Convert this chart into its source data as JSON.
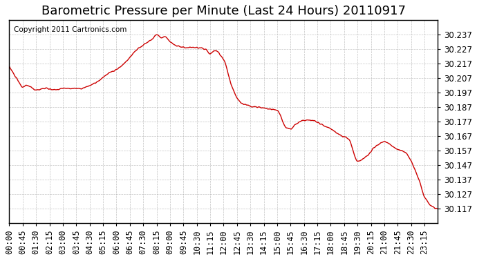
{
  "title": "Barometric Pressure per Minute (Last 24 Hours) 20110917",
  "copyright": "Copyright 2011 Cartronics.com",
  "line_color": "#cc0000",
  "background_color": "#ffffff",
  "grid_color": "#aaaaaa",
  "ylim": [
    30.107,
    30.247
  ],
  "yticks": [
    30.117,
    30.127,
    30.137,
    30.147,
    30.157,
    30.167,
    30.177,
    30.187,
    30.197,
    30.207,
    30.217,
    30.227,
    30.237
  ],
  "xtick_labels": [
    "00:00",
    "00:45",
    "01:30",
    "02:15",
    "03:00",
    "03:45",
    "04:30",
    "05:15",
    "06:00",
    "06:45",
    "07:30",
    "08:15",
    "09:00",
    "09:45",
    "10:30",
    "11:15",
    "12:00",
    "12:45",
    "13:30",
    "14:15",
    "15:00",
    "15:45",
    "16:30",
    "17:15",
    "18:00",
    "18:45",
    "19:30",
    "20:15",
    "21:00",
    "21:45",
    "22:30",
    "23:15"
  ],
  "title_fontsize": 13,
  "tick_fontsize": 8.5,
  "copyright_fontsize": 7.5
}
